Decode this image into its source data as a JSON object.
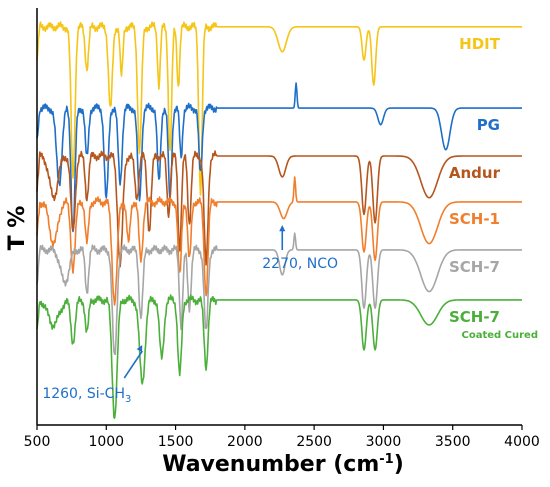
{
  "chart_data": {
    "type": "line",
    "xlabel": "Wavenumber (cm",
    "xlabel_sup": "-1",
    "xlabel_end": ")",
    "ylabel": "T %",
    "xlim": [
      500,
      4000
    ],
    "x_ticks": [
      "500",
      "1000",
      "1500",
      "2000",
      "2500",
      "3000",
      "3500",
      "4000"
    ],
    "grid": false,
    "legend": "labels beside each trace on the right",
    "series": [
      {
        "name": "HDIT",
        "sublabel": "",
        "color": "#F5C518",
        "baseline": 0.955,
        "peaks": [
          [
            760,
            0.36,
            14
          ],
          [
            860,
            0.1,
            12
          ],
          [
            1030,
            0.2,
            14
          ],
          [
            1110,
            0.12,
            10
          ],
          [
            1240,
            0.3,
            14
          ],
          [
            1380,
            0.14,
            10
          ],
          [
            1460,
            0.3,
            12
          ],
          [
            1520,
            0.14,
            10
          ],
          [
            1680,
            0.4,
            12
          ],
          [
            2270,
            0.06,
            30
          ],
          [
            2860,
            0.08,
            14
          ],
          [
            2930,
            0.14,
            14
          ]
        ]
      },
      {
        "name": "PG",
        "sublabel": "",
        "color": "#1F6FC9",
        "baseline": 0.76,
        "peaks": [
          [
            660,
            0.18,
            20
          ],
          [
            760,
            0.3,
            14
          ],
          [
            860,
            0.12,
            12
          ],
          [
            1000,
            0.22,
            14
          ],
          [
            1100,
            0.18,
            14
          ],
          [
            1240,
            0.22,
            14
          ],
          [
            1380,
            0.18,
            12
          ],
          [
            1460,
            0.22,
            12
          ],
          [
            1540,
            0.12,
            10
          ],
          [
            1680,
            0.16,
            12
          ],
          [
            2370,
            -0.06,
            6
          ],
          [
            2980,
            0.04,
            20
          ],
          [
            3450,
            0.1,
            30
          ]
        ]
      },
      {
        "name": "Andur",
        "sublabel": "",
        "color": "#B5561E",
        "baseline": 0.645,
        "peaks": [
          [
            620,
            0.1,
            30
          ],
          [
            760,
            0.18,
            16
          ],
          [
            860,
            0.1,
            12
          ],
          [
            1100,
            0.26,
            18
          ],
          [
            1220,
            0.1,
            14
          ],
          [
            1310,
            0.18,
            14
          ],
          [
            1450,
            0.14,
            12
          ],
          [
            1530,
            0.22,
            12
          ],
          [
            1600,
            0.16,
            12
          ],
          [
            1720,
            0.26,
            14
          ],
          [
            2270,
            0.05,
            25
          ],
          [
            2860,
            0.14,
            16
          ],
          [
            2940,
            0.16,
            16
          ],
          [
            3330,
            0.1,
            60
          ]
        ]
      },
      {
        "name": "SCH-1",
        "sublabel": "",
        "color": "#F07F2D",
        "baseline": 0.535,
        "peaks": [
          [
            620,
            0.1,
            30
          ],
          [
            760,
            0.16,
            16
          ],
          [
            860,
            0.1,
            12
          ],
          [
            1060,
            0.24,
            18
          ],
          [
            1160,
            0.1,
            12
          ],
          [
            1250,
            0.14,
            14
          ],
          [
            1530,
            0.18,
            12
          ],
          [
            1600,
            0.14,
            12
          ],
          [
            1720,
            0.22,
            14
          ],
          [
            2280,
            0.04,
            25
          ],
          [
            2360,
            -0.06,
            6
          ],
          [
            2860,
            0.12,
            16
          ],
          [
            2940,
            0.14,
            16
          ],
          [
            3330,
            0.1,
            60
          ]
        ]
      },
      {
        "name": "SCH-7",
        "sublabel": "",
        "color": "#A6A6A6",
        "baseline": 0.42,
        "peaks": [
          [
            700,
            0.08,
            30
          ],
          [
            860,
            0.1,
            12
          ],
          [
            1060,
            0.26,
            16
          ],
          [
            1250,
            0.16,
            14
          ],
          [
            1540,
            0.18,
            12
          ],
          [
            1600,
            0.14,
            12
          ],
          [
            1720,
            0.2,
            14
          ],
          [
            2270,
            0.06,
            20
          ],
          [
            2360,
            -0.04,
            6
          ],
          [
            2860,
            0.14,
            16
          ],
          [
            2940,
            0.14,
            16
          ],
          [
            3330,
            0.1,
            60
          ]
        ]
      },
      {
        "name": "SCH-7",
        "sublabel": "Coated Cured",
        "color": "#4CAF3A",
        "baseline": 0.3,
        "peaks": [
          [
            620,
            0.06,
            40
          ],
          [
            760,
            0.1,
            16
          ],
          [
            860,
            0.08,
            12
          ],
          [
            1060,
            0.28,
            18
          ],
          [
            1260,
            0.2,
            20
          ],
          [
            1400,
            0.14,
            16
          ],
          [
            1530,
            0.18,
            14
          ],
          [
            1720,
            0.16,
            14
          ],
          [
            2860,
            0.12,
            16
          ],
          [
            2940,
            0.12,
            16
          ],
          [
            3330,
            0.06,
            60
          ]
        ]
      }
    ],
    "annotations": [
      {
        "id": "nco",
        "text": "2270, NCO",
        "sub": "",
        "x": 2270,
        "color": "#1F6FC9"
      },
      {
        "id": "sich3",
        "text": "1260, Si-CH",
        "sub": "3",
        "x": 1260,
        "color": "#1F6FC9"
      }
    ]
  }
}
